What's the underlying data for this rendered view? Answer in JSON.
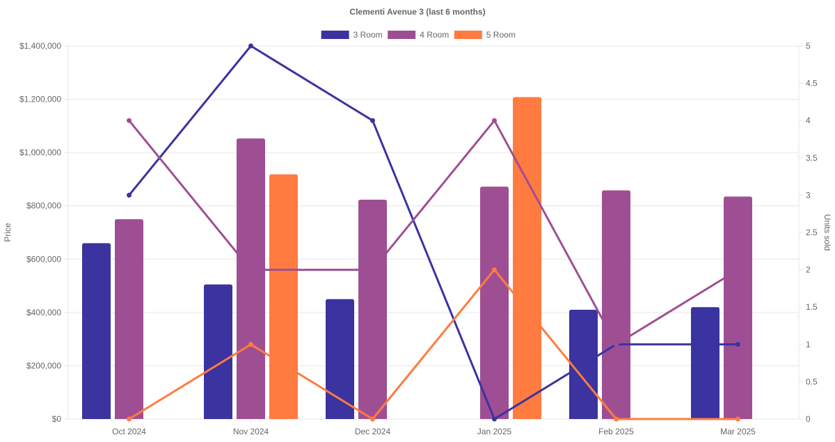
{
  "chart_data": {
    "type": "bar",
    "title": "Clementi Avenue 3 (last 6 months)",
    "categories": [
      "Oct 2024",
      "Nov 2024",
      "Dec 2024",
      "Jan 2025",
      "Feb 2025",
      "Mar 2025"
    ],
    "series": [
      {
        "name": "3 Room",
        "color": "#3a33a0",
        "prices": [
          660000,
          505000,
          450000,
          null,
          410000,
          420000
        ],
        "units": [
          3,
          5,
          4,
          0,
          1,
          1
        ]
      },
      {
        "name": "4 Room",
        "color": "#9e4f93",
        "prices": [
          750000,
          1053000,
          823000,
          872000,
          858000,
          835000
        ],
        "units": [
          4,
          2,
          2,
          4,
          1,
          2
        ]
      },
      {
        "name": "5 Room",
        "color": "#ff7b40",
        "prices": [
          null,
          918000,
          null,
          1208000,
          null,
          null
        ],
        "units": [
          0,
          1,
          0,
          2,
          0,
          0
        ]
      }
    ],
    "y_left": {
      "label": "Price",
      "range": [
        0,
        1400000
      ],
      "ticks": [
        0,
        200000,
        400000,
        600000,
        800000,
        1000000,
        1200000,
        1400000
      ],
      "tick_labels": [
        "$0",
        "$200,000",
        "$400,000",
        "$600,000",
        "$800,000",
        "$1,000,000",
        "$1,200,000",
        "$1,400,000"
      ]
    },
    "y_right": {
      "label": "Units sold",
      "range": [
        0,
        5
      ],
      "ticks": [
        0,
        0.5,
        1,
        1.5,
        2,
        2.5,
        3,
        3.5,
        4,
        4.5,
        5
      ],
      "tick_labels": [
        "0",
        "0.5",
        "1",
        "1.5",
        "2",
        "2.5",
        "3",
        "3.5",
        "4",
        "4.5",
        "5"
      ]
    },
    "legend_position": "top-center",
    "grid": true
  }
}
